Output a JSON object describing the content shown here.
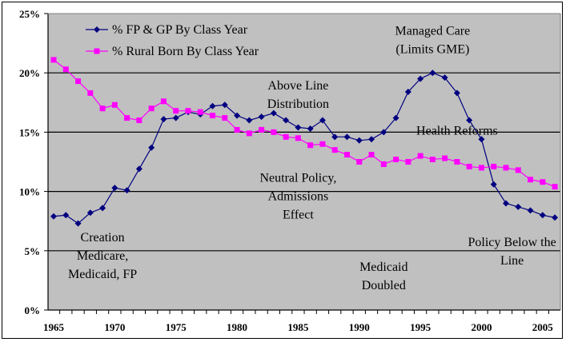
{
  "chart_data": {
    "type": "line",
    "title": "",
    "xlabel": "",
    "ylabel": "",
    "x": [
      1965,
      1966,
      1967,
      1968,
      1969,
      1970,
      1971,
      1972,
      1973,
      1974,
      1975,
      1976,
      1977,
      1978,
      1979,
      1980,
      1981,
      1982,
      1983,
      1984,
      1985,
      1986,
      1987,
      1988,
      1989,
      1990,
      1991,
      1992,
      1993,
      1994,
      1995,
      1996,
      1997,
      1998,
      1999,
      2000,
      2001,
      2002,
      2003,
      2004,
      2005,
      2006
    ],
    "xlim": [
      1965,
      2006
    ],
    "ylim": [
      0,
      25
    ],
    "y_ticks": [
      "0%",
      "5%",
      "10%",
      "15%",
      "20%",
      "25%"
    ],
    "y_tick_values": [
      0,
      5,
      10,
      15,
      20,
      25
    ],
    "x_ticks": [
      "1965",
      "1970",
      "1975",
      "1980",
      "1985",
      "1990",
      "1995",
      "2000",
      "2005"
    ],
    "x_tick_values": [
      1965,
      1970,
      1975,
      1980,
      1985,
      1990,
      1995,
      2000,
      2005
    ],
    "grid": "horizontal",
    "legend_position": "top-left (inside plot)",
    "plot_background": "#c0c0c0",
    "series": [
      {
        "name": "% FP & GP By Class Year",
        "color": "#000080",
        "marker": "diamond",
        "values": [
          7.9,
          8.0,
          7.3,
          8.2,
          8.6,
          10.3,
          10.1,
          11.9,
          13.7,
          16.1,
          16.2,
          16.7,
          16.5,
          17.2,
          17.3,
          16.4,
          16.0,
          16.3,
          16.6,
          16.0,
          15.4,
          15.3,
          16.0,
          14.6,
          14.6,
          14.3,
          14.4,
          15.0,
          16.2,
          18.4,
          19.5,
          20.0,
          19.6,
          18.3,
          16.0,
          14.4,
          10.6,
          9.0,
          8.7,
          8.4,
          8.0,
          7.8
        ]
      },
      {
        "name": "% Rural Born By Class Year",
        "color": "#ff00ff",
        "marker": "square",
        "values": [
          21.1,
          20.3,
          19.3,
          18.3,
          17.0,
          17.3,
          16.2,
          16.0,
          17.0,
          17.6,
          16.8,
          16.8,
          16.7,
          16.4,
          16.2,
          15.2,
          14.9,
          15.2,
          15.0,
          14.6,
          14.5,
          13.9,
          14.0,
          13.5,
          13.1,
          12.5,
          13.1,
          12.3,
          12.7,
          12.5,
          13.0,
          12.7,
          12.8,
          12.5,
          12.1,
          12.0,
          12.1,
          12.0,
          11.8,
          11.0,
          10.8,
          10.4
        ]
      }
    ],
    "annotations": [
      {
        "lines": [
          "Managed Care",
          "(Limits GME)"
        ],
        "x": 1996,
        "y": 23.2
      },
      {
        "lines": [
          "Above Line",
          "Distribution"
        ],
        "x": 1985,
        "y": 18.6
      },
      {
        "lines": [
          "Health Reforms"
        ],
        "x": 1998,
        "y": 14.8
      },
      {
        "lines": [
          "Neutral Policy,",
          "Admissions",
          "Effect"
        ],
        "x": 1985,
        "y": 10.8
      },
      {
        "lines": [
          "Creation",
          "Medicare,",
          "Medicaid, FP"
        ],
        "x": 1969,
        "y": 5.8
      },
      {
        "lines": [
          "Policy Below the",
          "Line"
        ],
        "x": 2002.5,
        "y": 5.4
      },
      {
        "lines": [
          "Medicaid",
          "Doubled"
        ],
        "x": 1992,
        "y": 3.3
      }
    ]
  }
}
